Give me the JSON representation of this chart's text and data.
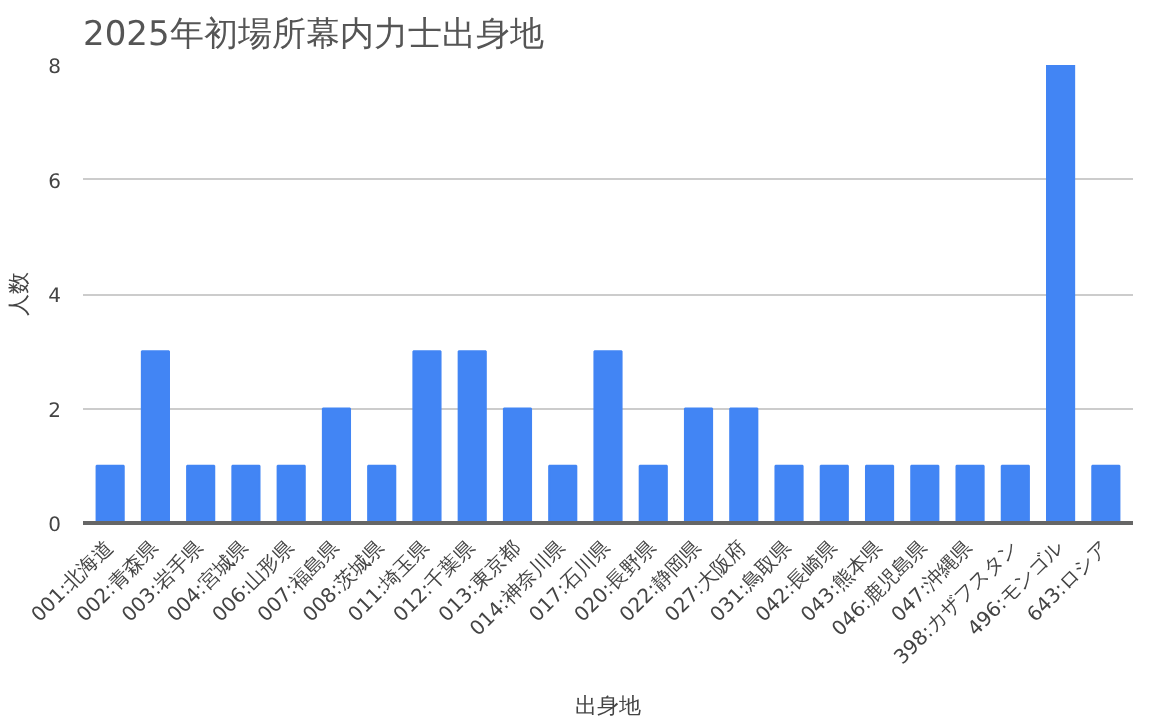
{
  "chart_data": {
    "type": "bar",
    "title": "2025年初場所幕内力士出身地",
    "xlabel": "出身地",
    "ylabel": "人数",
    "categories": [
      "001:北海道",
      "002:青森県",
      "003:岩手県",
      "004:宮城県",
      "006:山形県",
      "007:福島県",
      "008:茨城県",
      "011:埼玉県",
      "012:千葉県",
      "013:東京都",
      "014:神奈川県",
      "017:石川県",
      "020:長野県",
      "022:静岡県",
      "027:大阪府",
      "031:鳥取県",
      "042:長崎県",
      "043:熊本県",
      "046:鹿児島県",
      "047:沖縄県",
      "398:カザフスタン",
      "496:モンゴル",
      "643:ロシア"
    ],
    "values": [
      1,
      3,
      1,
      1,
      1,
      2,
      1,
      3,
      3,
      2,
      1,
      3,
      1,
      2,
      2,
      1,
      1,
      1,
      1,
      1,
      1,
      8,
      1
    ],
    "color": "#4285f4",
    "ylim": [
      0,
      8
    ],
    "yticks": [
      0,
      2,
      4,
      6,
      8
    ],
    "grid": "y"
  }
}
